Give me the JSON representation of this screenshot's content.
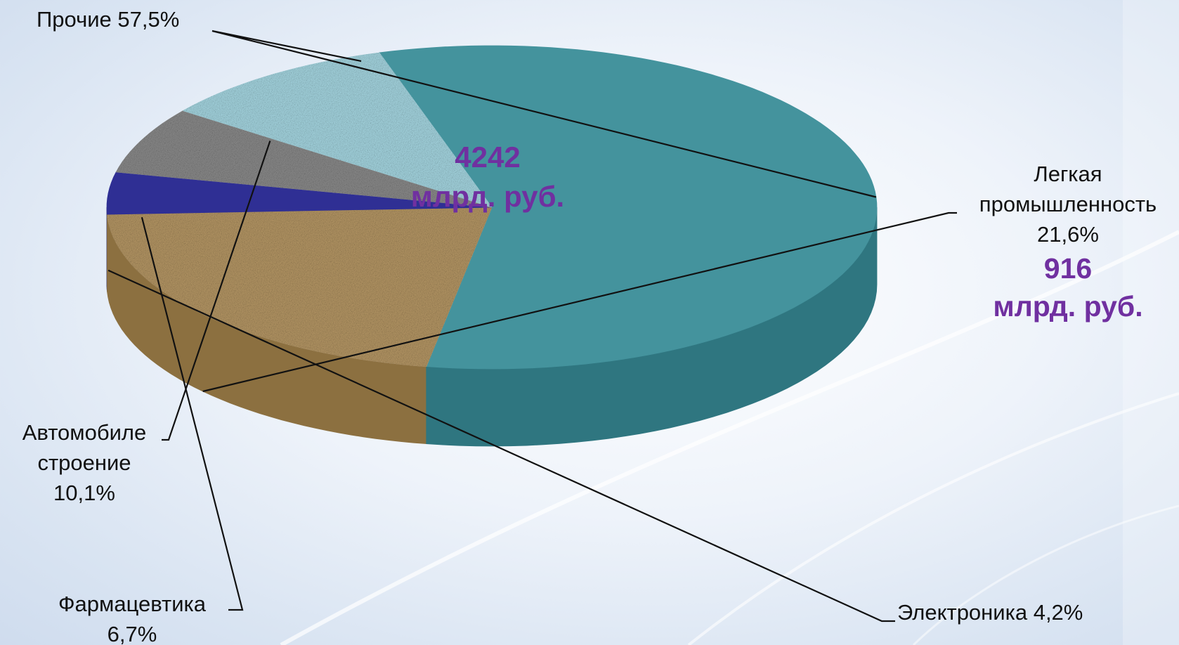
{
  "chart_data": {
    "type": "pie",
    "categories": [
      "Прочие",
      "Легкая промышленность",
      "Электроника",
      "Фармацевтика",
      "Автомобилестроение"
    ],
    "values": [
      57.5,
      21.6,
      4.2,
      6.7,
      10.1
    ],
    "colors": [
      "#44939d",
      "#b99a67",
      "#2f2f94",
      "#8d8d8d",
      "#a9dbe6"
    ],
    "side_colors": [
      "#2f7680",
      "#8c7040",
      "#1c1c5a",
      "#676767",
      "#86c1cd"
    ]
  },
  "labels": {
    "prochie": {
      "text": "Прочие 57,5%"
    },
    "legkaya": {
      "line1": "Легкая",
      "line2": "промышленность",
      "pct": "21,6%",
      "val1": "916",
      "val2": "млрд. руб."
    },
    "elektronika": {
      "text": "Электроника 4,2%"
    },
    "farma": {
      "line1": "Фармацевтика",
      "pct": "6,7%"
    },
    "avto": {
      "line1": "Автомобиле",
      "line2": "строение",
      "pct": "10,1%"
    }
  },
  "center": {
    "line1": "4242",
    "line2": "млрд. руб."
  }
}
